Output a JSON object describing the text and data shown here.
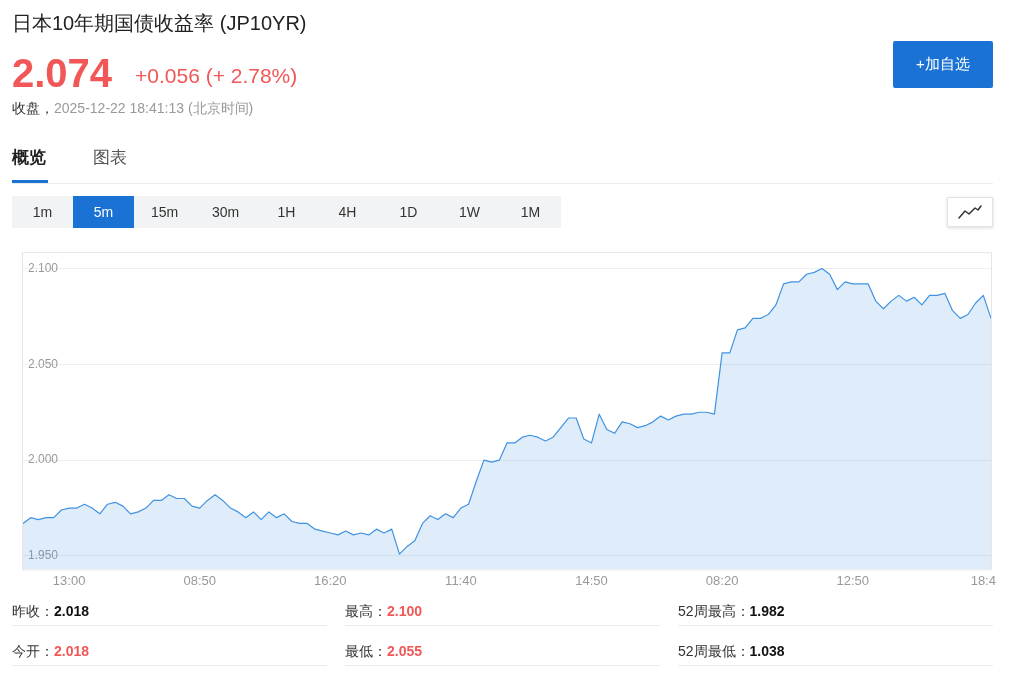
{
  "chart_data": {
    "type": "area",
    "title": "日本10年期国债收益率 (JP10YR)",
    "categories": [
      null,
      null,
      null,
      null,
      null,
      null,
      "13:00",
      null,
      null,
      null,
      null,
      null,
      null,
      null,
      null,
      null,
      null,
      null,
      null,
      null,
      null,
      null,
      null,
      "08:50",
      null,
      null,
      null,
      null,
      null,
      null,
      null,
      null,
      null,
      null,
      null,
      null,
      null,
      null,
      null,
      null,
      "16:20",
      null,
      null,
      null,
      null,
      null,
      null,
      null,
      null,
      null,
      null,
      null,
      null,
      null,
      null,
      null,
      null,
      "11:40",
      null,
      null,
      null,
      null,
      null,
      null,
      null,
      null,
      null,
      null,
      null,
      null,
      null,
      null,
      null,
      null,
      "14:50",
      null,
      null,
      null,
      null,
      null,
      null,
      null,
      null,
      null,
      null,
      null,
      null,
      null,
      null,
      null,
      null,
      "08:20",
      null,
      null,
      null,
      null,
      null,
      null,
      null,
      null,
      null,
      null,
      null,
      null,
      null,
      null,
      null,
      null,
      "12:50",
      null,
      null,
      null,
      null,
      null,
      null,
      null,
      null,
      null,
      null,
      null,
      null,
      null,
      null,
      null,
      null,
      "18:4",
      null
    ],
    "values": [
      1.967,
      1.97,
      1.969,
      1.97,
      1.97,
      1.974,
      1.975,
      1.975,
      1.977,
      1.975,
      1.972,
      1.977,
      1.978,
      1.976,
      1.972,
      1.973,
      1.975,
      1.979,
      1.979,
      1.982,
      1.98,
      1.98,
      1.976,
      1.975,
      1.979,
      1.982,
      1.979,
      1.975,
      1.973,
      1.97,
      1.973,
      1.969,
      1.973,
      1.97,
      1.972,
      1.968,
      1.967,
      1.967,
      1.964,
      1.963,
      1.962,
      1.961,
      1.963,
      1.961,
      1.962,
      1.961,
      1.964,
      1.962,
      1.964,
      1.951,
      1.955,
      1.958,
      1.967,
      1.971,
      1.969,
      1.972,
      1.97,
      1.975,
      1.977,
      1.989,
      2.0,
      1.999,
      2.0,
      2.009,
      2.009,
      2.012,
      2.013,
      2.012,
      2.01,
      2.012,
      2.017,
      2.022,
      2.022,
      2.011,
      2.009,
      2.024,
      2.016,
      2.014,
      2.02,
      2.019,
      2.017,
      2.018,
      2.02,
      2.023,
      2.021,
      2.023,
      2.024,
      2.024,
      2.025,
      2.025,
      2.024,
      2.056,
      2.056,
      2.068,
      2.069,
      2.074,
      2.074,
      2.076,
      2.081,
      2.092,
      2.093,
      2.093,
      2.097,
      2.098,
      2.1,
      2.097,
      2.089,
      2.093,
      2.092,
      2.092,
      2.092,
      2.083,
      2.079,
      2.083,
      2.086,
      2.083,
      2.085,
      2.081,
      2.086,
      2.086,
      2.087,
      2.078,
      2.074,
      2.076,
      2.082,
      2.086,
      2.074
    ],
    "color": "#4192e0",
    "ylim": [
      1.943,
      2.108
    ],
    "yticks": [
      {
        "value": 1.95,
        "label": "1.950"
      },
      {
        "value": 2.0,
        "label": "2.000"
      },
      {
        "value": 2.05,
        "label": "2.050"
      },
      {
        "value": 2.1,
        "label": "2.100"
      }
    ],
    "grid": "y",
    "legend": false,
    "marker": "none",
    "annotations": [
      "2.074",
      "+0.056 (+ 2.78%)",
      "收盘，",
      "2025-12-22 18:41:13 (北京时间)",
      "+加自选",
      "概览",
      "图表",
      "1m",
      "5m",
      "15m",
      "30m",
      "1H",
      "4H",
      "1D",
      "1W",
      "1M",
      "昨收：",
      "2.018",
      "最高：",
      "2.100",
      "52周最高：",
      "1.982",
      "今开：",
      "2.018",
      "最低：",
      "2.055",
      "52周最低：",
      "1.038"
    ]
  }
}
